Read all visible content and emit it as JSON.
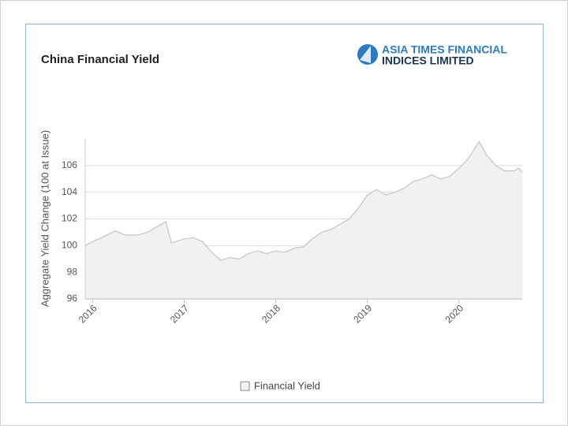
{
  "chart_data": {
    "type": "area",
    "title": "China Financial Yield",
    "brand": [
      "ASIA TIMES FINANCIAL",
      "INDICES LIMITED"
    ],
    "y_label": "Aggregate Yield Change (100 at Issue)",
    "x": [
      2015.92,
      2016.0,
      2016.1,
      2016.25,
      2016.35,
      2016.5,
      2016.6,
      2016.75,
      2016.8,
      2016.86,
      2017.0,
      2017.1,
      2017.2,
      2017.3,
      2017.4,
      2017.5,
      2017.6,
      2017.7,
      2017.8,
      2017.9,
      2018.0,
      2018.1,
      2018.2,
      2018.3,
      2018.4,
      2018.5,
      2018.6,
      2018.7,
      2018.8,
      2018.9,
      2019.0,
      2019.1,
      2019.2,
      2019.3,
      2019.4,
      2019.5,
      2019.6,
      2019.7,
      2019.8,
      2019.9,
      2020.0,
      2020.1,
      2020.22,
      2020.3,
      2020.4,
      2020.5,
      2020.6,
      2020.65,
      2020.69
    ],
    "series": [
      {
        "name": "Financial Yield",
        "color": "#c4c4c4",
        "fill": "#f1f1f1",
        "values": [
          100.0,
          100.3,
          100.6,
          101.1,
          100.8,
          100.8,
          101.0,
          101.6,
          101.8,
          100.2,
          100.5,
          100.6,
          100.3,
          99.5,
          98.9,
          99.1,
          99.0,
          99.4,
          99.6,
          99.4,
          99.6,
          99.5,
          99.8,
          99.9,
          100.5,
          101.0,
          101.2,
          101.6,
          102.0,
          102.8,
          103.8,
          104.2,
          103.8,
          104.0,
          104.3,
          104.8,
          105.0,
          105.3,
          105.0,
          105.2,
          105.8,
          106.5,
          107.8,
          106.8,
          106.0,
          105.6,
          105.6,
          105.8,
          105.5
        ]
      }
    ],
    "xlim": [
      2015.92,
      2020.69
    ],
    "xticks": [
      2016,
      2017,
      2018,
      2019,
      2020
    ],
    "ylim": [
      96,
      108
    ],
    "yticks": [
      96,
      98,
      100,
      102,
      104,
      106
    ],
    "grid": true,
    "legend": "bottom"
  }
}
